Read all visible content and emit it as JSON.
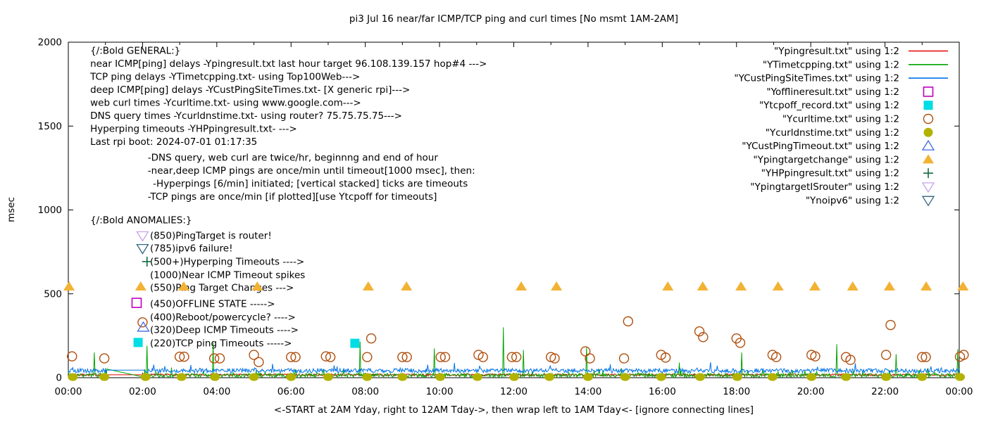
{
  "chart_data": {
    "type": "line",
    "title": "pi3 Jul 16  near/far ICMP/TCP ping and curl times [No msmt 1AM-2AM]",
    "xlabel": "<-START at 2AM Yday, right to 12AM Tday->, then wrap left to 1AM Tday<- [ignore connecting lines]",
    "ylabel": "msec",
    "x_range_hours": [
      0,
      24
    ],
    "ylim": [
      0,
      2000
    ],
    "y_ticks": [
      0,
      500,
      1000,
      1500,
      2000
    ],
    "x_tick_labels": [
      "00:00",
      "02:00",
      "04:00",
      "06:00",
      "08:00",
      "10:00",
      "12:00",
      "14:00",
      "16:00",
      "18:00",
      "20:00",
      "22:00",
      "00:00"
    ],
    "grid": false,
    "legend_position": "top-right-inside",
    "legend": [
      {
        "label": "\"Ypingresult.txt\" using 1:2",
        "shape": "line",
        "filled": false,
        "color": "#e60000"
      },
      {
        "label": "\"YTimetcpping.txt\" using 1:2",
        "shape": "line",
        "filled": false,
        "color": "#00a400"
      },
      {
        "label": "\"YCustPingSiteTimes.txt\" using 1:2",
        "shape": "line",
        "filled": false,
        "color": "#0072e5"
      },
      {
        "label": "\"Yofflineresult.txt\" using 1:2",
        "shape": "square",
        "filled": false,
        "color": "#c000c0"
      },
      {
        "label": "\"Ytcpoff_record.txt\" using 1:2",
        "shape": "square",
        "filled": true,
        "color": "#00dde5"
      },
      {
        "label": "\"Ycurltime.txt\" using 1:2",
        "shape": "circle",
        "filled": false,
        "color": "#b0500f"
      },
      {
        "label": "\"Ycurldnstime.txt\" using 1:2",
        "shape": "circle",
        "filled": true,
        "color": "#b2b200"
      },
      {
        "label": "\"YCustPingTimeout.txt\" using 1:2",
        "shape": "triangle-up",
        "filled": false,
        "color": "#4169e1"
      },
      {
        "label": "\"Ypingtargetchange\" using 1:2",
        "shape": "triangle-up",
        "filled": true,
        "color": "#f2b233"
      },
      {
        "label": "\"YHPpingresult.txt\" using 1:2",
        "shape": "plus",
        "filled": false,
        "color": "#116b3c"
      },
      {
        "label": "\"YpingtargetISrouter\" using 1:2",
        "shape": "triangle-down",
        "filled": false,
        "color": "#c8a2e8"
      },
      {
        "label": "\"Ynoipv6\" using 1:2",
        "shape": "triangle-down",
        "filled": false,
        "color": "#33667f"
      }
    ],
    "notes": [
      {
        "x_hour": 0.59,
        "msec": 1950,
        "text": "{/:Bold GENERAL:}"
      },
      {
        "x_hour": 0.59,
        "msec": 1872,
        "text": "near ICMP[ping] delays -Ypingresult.txt last hour target 96.108.139.157 hop#4 --->"
      },
      {
        "x_hour": 0.59,
        "msec": 1795,
        "text": "TCP ping delays -YTimetcpping.txt- using Top100Web--->"
      },
      {
        "x_hour": 0.59,
        "msec": 1717,
        "text": "deep ICMP[ping] delays -YCustPingSiteTimes.txt- [X generic rpi]--->"
      },
      {
        "x_hour": 0.59,
        "msec": 1639,
        "text": "web curl times -Ycurltime.txt- using www.google.com--->"
      },
      {
        "x_hour": 0.59,
        "msec": 1562,
        "text": "DNS query times -Ycurldnstime.txt- using router? 75.75.75.75--->"
      },
      {
        "x_hour": 0.59,
        "msec": 1484,
        "text": "Hyperping timeouts -YHPpingresult.txt- --->"
      },
      {
        "x_hour": 0.59,
        "msec": 1407,
        "text": "Last rpi boot: 2024-07-01 01:17:35"
      },
      {
        "x_hour": 2.14,
        "msec": 1312,
        "text": "-DNS query, web curl are twice/hr, beginnng and end of hour"
      },
      {
        "x_hour": 2.14,
        "msec": 1235,
        "text": "-near,deep ICMP pings are once/min until timeout[1000 msec], then:"
      },
      {
        "x_hour": 2.28,
        "msec": 1157,
        "text": "-Hyperpings [6/min] initiated; [vertical stacked] ticks are timeouts"
      },
      {
        "x_hour": 2.14,
        "msec": 1080,
        "text": "-TCP pings are once/min [if plotted][use Ytcpoff for timeouts]"
      },
      {
        "x_hour": 0.59,
        "msec": 939,
        "text": "{/:Bold ANOMALIES:}"
      },
      {
        "x_hour": 2.2,
        "msec": 847,
        "text": "(850)PingTarget is router!"
      },
      {
        "x_hour": 2.2,
        "msec": 771,
        "text": "(785)ipv6 failure!"
      },
      {
        "x_hour": 2.2,
        "msec": 692,
        "text": "(500+)Hyperping Timeouts ---->"
      },
      {
        "x_hour": 2.2,
        "msec": 612,
        "text": "(1000)Near ICMP Timeout spikes"
      },
      {
        "x_hour": 2.2,
        "msec": 537,
        "text": "(550)Ping Target Changes --->"
      },
      {
        "x_hour": 2.2,
        "msec": 440,
        "text": "(450)OFFLINE STATE ----->"
      },
      {
        "x_hour": 2.2,
        "msec": 361,
        "text": "(400)Reboot/powercycle? ---->"
      },
      {
        "x_hour": 2.2,
        "msec": 285,
        "text": "(320)Deep ICMP Timeouts ---->"
      },
      {
        "x_hour": 2.2,
        "msec": 205,
        "text": "(220)TCP ping Timeouts ----->"
      }
    ],
    "series": [
      {
        "name": "Ypingresult",
        "kind": "noise-line",
        "color": "#e60000",
        "base": 17,
        "amp": 6,
        "seed": 7,
        "burst_prob": 0,
        "burst_amp": 0,
        "gap": {
          "h0": 1.03,
          "v0": 17,
          "h1": 2.06,
          "v1": 17
        },
        "spikes": []
      },
      {
        "name": "YTimetcpping",
        "kind": "noise-line",
        "color": "#00a400",
        "base": 14,
        "amp": 12,
        "seed": 3,
        "burst_prob": 0.05,
        "burst_amp": 40,
        "gap": {
          "h0": 1.03,
          "v0": 52,
          "h1": 2.06,
          "v1": 2
        },
        "spikes": [
          [
            0.7,
            150
          ],
          [
            2.12,
            190
          ],
          [
            3.9,
            210
          ],
          [
            7.85,
            215
          ],
          [
            9.85,
            175
          ],
          [
            11.72,
            300
          ],
          [
            12.25,
            165
          ],
          [
            13.95,
            180
          ],
          [
            16.45,
            90
          ],
          [
            18.15,
            150
          ],
          [
            20.7,
            200
          ],
          [
            22.3,
            140
          ],
          [
            23.95,
            170
          ]
        ]
      },
      {
        "name": "YCustPingSiteTimes",
        "kind": "noise-line",
        "color": "#0072e5",
        "base": 42,
        "amp": 13,
        "seed": 5,
        "burst_prob": 0.03,
        "burst_amp": 30,
        "gap": {
          "h0": 1.03,
          "v0": 45,
          "h1": 2.06,
          "v1": 45
        },
        "spikes": [
          [
            2.3,
            78
          ],
          [
            5.5,
            82
          ],
          [
            10.4,
            88
          ],
          [
            14.6,
            80
          ],
          [
            17.3,
            92
          ],
          [
            21.2,
            86
          ]
        ]
      },
      {
        "name": "Ycurldnstime",
        "kind": "scatter",
        "shape": "dot",
        "filled": true,
        "color": "#b2b200",
        "points": [
          [
            0.12,
            4
          ],
          [
            0.97,
            4
          ],
          [
            2.08,
            4
          ],
          [
            3.05,
            4
          ],
          [
            3.95,
            4
          ],
          [
            5.0,
            4
          ],
          [
            6.0,
            4
          ],
          [
            7.0,
            4
          ],
          [
            8.05,
            4
          ],
          [
            9.0,
            4
          ],
          [
            10.02,
            4
          ],
          [
            11.02,
            4
          ],
          [
            12.01,
            4
          ],
          [
            12.96,
            4
          ],
          [
            14.0,
            4
          ],
          [
            15.0,
            4
          ],
          [
            15.97,
            4
          ],
          [
            17.02,
            4
          ],
          [
            18.02,
            4
          ],
          [
            18.97,
            4
          ],
          [
            20.02,
            4
          ],
          [
            20.95,
            4
          ],
          [
            22.03,
            4
          ],
          [
            23.0,
            4
          ],
          [
            24.02,
            4
          ]
        ]
      },
      {
        "name": "Ycurltime",
        "kind": "scatter",
        "shape": "circle",
        "filled": false,
        "color": "#b0500f",
        "points": [
          [
            0.1,
            127
          ],
          [
            0.97,
            115
          ],
          [
            2.0,
            330
          ],
          [
            3.0,
            125
          ],
          [
            3.12,
            125
          ],
          [
            3.93,
            115
          ],
          [
            4.08,
            115
          ],
          [
            5.0,
            136
          ],
          [
            5.13,
            93
          ],
          [
            6.0,
            123
          ],
          [
            6.12,
            123
          ],
          [
            6.94,
            127
          ],
          [
            7.06,
            123
          ],
          [
            8.05,
            123
          ],
          [
            8.16,
            234
          ],
          [
            9.0,
            123
          ],
          [
            9.12,
            123
          ],
          [
            10.03,
            123
          ],
          [
            10.15,
            123
          ],
          [
            11.05,
            136
          ],
          [
            11.17,
            123
          ],
          [
            11.95,
            123
          ],
          [
            12.07,
            123
          ],
          [
            13.0,
            123
          ],
          [
            13.1,
            115
          ],
          [
            13.93,
            157
          ],
          [
            14.05,
            115
          ],
          [
            14.97,
            115
          ],
          [
            15.08,
            336
          ],
          [
            15.97,
            136
          ],
          [
            16.09,
            120
          ],
          [
            17.0,
            276
          ],
          [
            17.1,
            242
          ],
          [
            18.0,
            234
          ],
          [
            18.1,
            208
          ],
          [
            18.97,
            136
          ],
          [
            19.07,
            123
          ],
          [
            20.02,
            136
          ],
          [
            20.12,
            127
          ],
          [
            20.95,
            123
          ],
          [
            21.07,
            106
          ],
          [
            22.03,
            136
          ],
          [
            22.15,
            314
          ],
          [
            23.0,
            123
          ],
          [
            23.1,
            123
          ],
          [
            24.02,
            125
          ],
          [
            24.12,
            136
          ]
        ]
      },
      {
        "name": "Ytcpoff_record",
        "kind": "scatter",
        "shape": "square",
        "filled": true,
        "color": "#00dde5",
        "points": [
          [
            1.88,
            210
          ],
          [
            7.72,
            205
          ]
        ]
      },
      {
        "name": "Yofflineresult",
        "kind": "scatter",
        "shape": "square",
        "filled": false,
        "color": "#c000c0",
        "points": [
          [
            1.84,
            446
          ]
        ]
      },
      {
        "name": "YCustPingTimeout",
        "kind": "scatter",
        "shape": "triangle-up",
        "filled": false,
        "color": "#4169e1",
        "points": [
          [
            2.02,
            300
          ]
        ]
      },
      {
        "name": "Ypingtargetchange",
        "kind": "scatter",
        "shape": "triangle-up",
        "filled": true,
        "color": "#f2b233",
        "points": [
          [
            0.02,
            543
          ],
          [
            1.95,
            543
          ],
          [
            3.11,
            543
          ],
          [
            5.09,
            543
          ],
          [
            8.08,
            543
          ],
          [
            9.11,
            543
          ],
          [
            12.2,
            543
          ],
          [
            13.15,
            543
          ],
          [
            16.15,
            543
          ],
          [
            17.09,
            543
          ],
          [
            18.12,
            543
          ],
          [
            19.12,
            543
          ],
          [
            20.11,
            543
          ],
          [
            21.13,
            543
          ],
          [
            22.12,
            543
          ],
          [
            23.11,
            543
          ],
          [
            24.1,
            543
          ]
        ]
      },
      {
        "name": "YHPpingresult",
        "kind": "scatter",
        "shape": "plus",
        "filled": false,
        "color": "#116b3c",
        "points": [
          [
            2.12,
            692
          ]
        ]
      },
      {
        "name": "YpingtargetISrouter",
        "kind": "scatter",
        "shape": "triangle-down",
        "filled": false,
        "color": "#c8a2e8",
        "points": [
          [
            2.0,
            847
          ]
        ]
      },
      {
        "name": "Ynoipv6",
        "kind": "scatter",
        "shape": "triangle-down",
        "filled": false,
        "color": "#33667f",
        "points": [
          [
            2.0,
            771
          ]
        ]
      }
    ]
  }
}
